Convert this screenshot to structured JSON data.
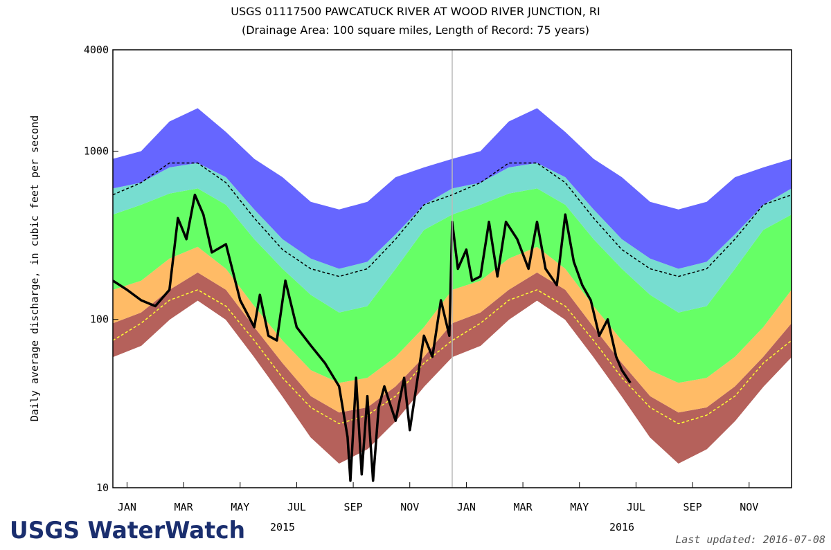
{
  "chart_data": {
    "type": "area",
    "title": "USGS 01117500 PAWCATUCK RIVER AT WOOD RIVER JUNCTION, RI",
    "subtitle": "(Drainage Area: 100 square miles, Length of Record: 75 years)",
    "y_label": "Daily average discharge, in cubic feet per second",
    "log_y": true,
    "ylim": [
      10,
      4000
    ],
    "yticks": [
      10,
      100,
      1000,
      4000
    ],
    "xlim": [
      0,
      24
    ],
    "xticks": [
      {
        "value": 0.5,
        "label": "JAN"
      },
      {
        "value": 2.5,
        "label": "MAR"
      },
      {
        "value": 4.5,
        "label": "MAY"
      },
      {
        "value": 6.5,
        "label": "JUL"
      },
      {
        "value": 8.5,
        "label": "SEP"
      },
      {
        "value": 10.5,
        "label": "NOV"
      },
      {
        "value": 12.5,
        "label": "JAN"
      },
      {
        "value": 14.5,
        "label": "MAR"
      },
      {
        "value": 16.5,
        "label": "MAY"
      },
      {
        "value": 18.5,
        "label": "JUL"
      },
      {
        "value": 20.5,
        "label": "SEP"
      },
      {
        "value": 22.5,
        "label": "NOV"
      }
    ],
    "year_labels": [
      {
        "value": 6,
        "label": "2015"
      },
      {
        "value": 18,
        "label": "2016"
      }
    ],
    "x": [
      0,
      1,
      2,
      3,
      4,
      5,
      6,
      7,
      8,
      9,
      10,
      11,
      12,
      13,
      14,
      15,
      16,
      17,
      18,
      19,
      20,
      21,
      22,
      23,
      24
    ],
    "series": [
      {
        "style": "base",
        "color": "#b5615b",
        "values": [
          60,
          70,
          100,
          130,
          100,
          60,
          35,
          20,
          14,
          17,
          25,
          40,
          60,
          70,
          100,
          130,
          100,
          60,
          35,
          20,
          14,
          17,
          25,
          40,
          60
        ]
      },
      {
        "style": "band",
        "color": "#b5615b",
        "values": [
          95,
          110,
          150,
          190,
          150,
          90,
          55,
          35,
          28,
          30,
          40,
          60,
          95,
          110,
          150,
          190,
          150,
          90,
          55,
          35,
          28,
          30,
          40,
          60,
          95
        ]
      },
      {
        "style": "band",
        "color": "#ffbb66",
        "values": [
          150,
          170,
          230,
          270,
          200,
          120,
          75,
          50,
          42,
          45,
          60,
          90,
          150,
          170,
          230,
          270,
          200,
          120,
          75,
          50,
          42,
          45,
          60,
          90,
          150
        ]
      },
      {
        "style": "band",
        "color": "#66ff66",
        "values": [
          420,
          480,
          560,
          600,
          480,
          300,
          200,
          140,
          110,
          120,
          200,
          340,
          420,
          480,
          560,
          600,
          480,
          300,
          200,
          140,
          110,
          120,
          200,
          340,
          420
        ]
      },
      {
        "style": "band",
        "color": "#77ddd0",
        "values": [
          600,
          650,
          800,
          850,
          700,
          450,
          300,
          230,
          200,
          220,
          320,
          480,
          600,
          650,
          800,
          850,
          700,
          450,
          300,
          230,
          200,
          220,
          320,
          480,
          600
        ]
      },
      {
        "style": "band",
        "color": "#6666ff",
        "values": [
          900,
          1000,
          1500,
          1800,
          1300,
          900,
          700,
          500,
          450,
          500,
          700,
          800,
          900,
          1000,
          1500,
          1800,
          1300,
          900,
          700,
          500,
          450,
          500,
          700,
          800,
          900
        ]
      },
      {
        "style": "dashed",
        "color": "#000000",
        "values": [
          550,
          650,
          850,
          850,
          650,
          400,
          260,
          200,
          180,
          200,
          300,
          480,
          550,
          650,
          850,
          850,
          650,
          400,
          260,
          200,
          180,
          200,
          300,
          480,
          550
        ]
      },
      {
        "style": "dashed",
        "color": "#ffff33",
        "values": [
          75,
          95,
          130,
          150,
          120,
          75,
          45,
          30,
          24,
          27,
          35,
          55,
          75,
          95,
          130,
          150,
          120,
          75,
          45,
          30,
          24,
          27,
          35,
          55,
          75
        ]
      },
      {
        "style": "line",
        "color": "#000000",
        "x": [
          0,
          0.5,
          1,
          1.5,
          2,
          2.3,
          2.6,
          2.9,
          3.2,
          3.5,
          4,
          4.5,
          5,
          5.2,
          5.5,
          5.8,
          6.1,
          6.5,
          7,
          7.5,
          8,
          8.3,
          8.4,
          8.6,
          8.8,
          9,
          9.2,
          9.4,
          9.6,
          10,
          10.3,
          10.5,
          11,
          11.3,
          11.6,
          11.9,
          12,
          12.2,
          12.5,
          12.7,
          13,
          13.3,
          13.6,
          13.9,
          14.3,
          14.7,
          15,
          15.3,
          15.7,
          16,
          16.3,
          16.6,
          16.9,
          17.2,
          17.5,
          17.8,
          18,
          18.3
        ],
        "values": [
          170,
          150,
          130,
          120,
          150,
          400,
          300,
          550,
          420,
          250,
          280,
          130,
          90,
          140,
          80,
          75,
          170,
          90,
          70,
          55,
          40,
          20,
          11,
          45,
          12,
          35,
          11,
          30,
          40,
          25,
          45,
          22,
          80,
          60,
          130,
          80,
          380,
          200,
          260,
          170,
          180,
          380,
          180,
          380,
          300,
          200,
          380,
          200,
          160,
          420,
          220,
          160,
          130,
          80,
          100,
          60,
          50,
          42
        ]
      }
    ]
  },
  "logo": "USGS WaterWatch",
  "last_updated": "Last updated: 2016-07-08"
}
